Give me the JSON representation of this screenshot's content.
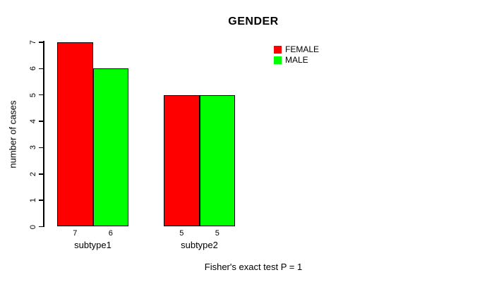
{
  "title": "GENDER",
  "y_axis": {
    "label": "number of cases",
    "tick_labels": [
      "0",
      "1",
      "2",
      "3",
      "4",
      "5",
      "6",
      "7"
    ]
  },
  "legend": {
    "items": [
      {
        "label": "FEMALE",
        "color": "#ff0000"
      },
      {
        "label": "MALE",
        "color": "#00ff00"
      }
    ]
  },
  "annotation": "Fisher's exact test P = 1",
  "chart_data": {
    "type": "bar",
    "title": "GENDER",
    "xlabel": "",
    "ylabel": "number of cases",
    "categories": [
      "subtype1",
      "subtype2"
    ],
    "series": [
      {
        "name": "FEMALE",
        "color": "#ff0000",
        "values": [
          7,
          5
        ]
      },
      {
        "name": "MALE",
        "color": "#00ff00",
        "values": [
          6,
          5
        ]
      }
    ],
    "bar_value_labels": [
      [
        "7",
        "6"
      ],
      [
        "5",
        "5"
      ]
    ],
    "y_ticks": [
      0,
      1,
      2,
      3,
      4,
      5,
      6,
      7
    ],
    "ylim": [
      0,
      7
    ],
    "grid": false,
    "legend_position": "top-right-inside",
    "bar_border_color": "#000000",
    "background": "#ffffff",
    "annotation": "Fisher's exact test P = 1"
  }
}
